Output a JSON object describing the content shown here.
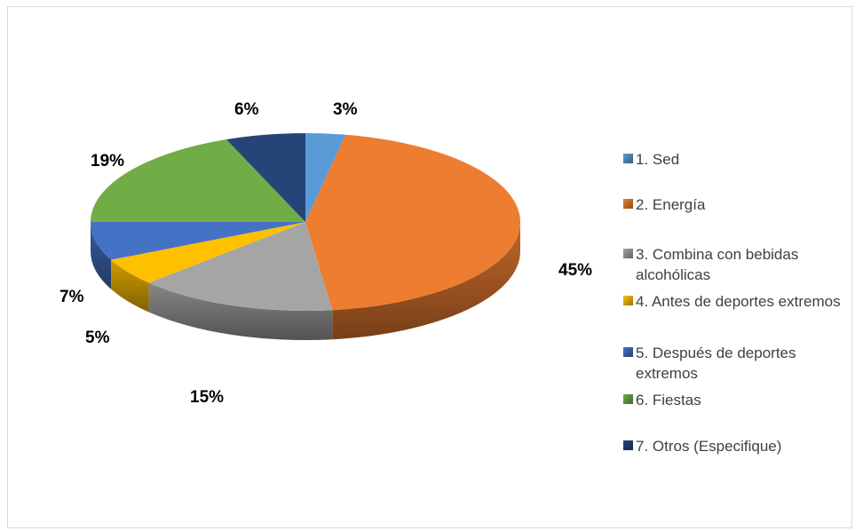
{
  "chart_data": {
    "type": "pie",
    "title": "",
    "categories": [
      "1. Sed",
      "2. Energía",
      "3. Combina con bebidas alcohólicas",
      "4. Antes de deportes extremos",
      "5. Después de deportes extremos",
      "6. Fiestas",
      "7. Otros (Especifique)"
    ],
    "values": [
      3,
      45,
      15,
      5,
      7,
      19,
      6
    ],
    "labels": [
      "3%",
      "45%",
      "15%",
      "5%",
      "7%",
      "19%",
      "6%"
    ],
    "colors": [
      "#5B9BD5",
      "#ED7D31",
      "#A5A5A5",
      "#FFC000",
      "#4472C4",
      "#70AD47",
      "#264478"
    ],
    "style": "3d",
    "legend_position": "right"
  }
}
